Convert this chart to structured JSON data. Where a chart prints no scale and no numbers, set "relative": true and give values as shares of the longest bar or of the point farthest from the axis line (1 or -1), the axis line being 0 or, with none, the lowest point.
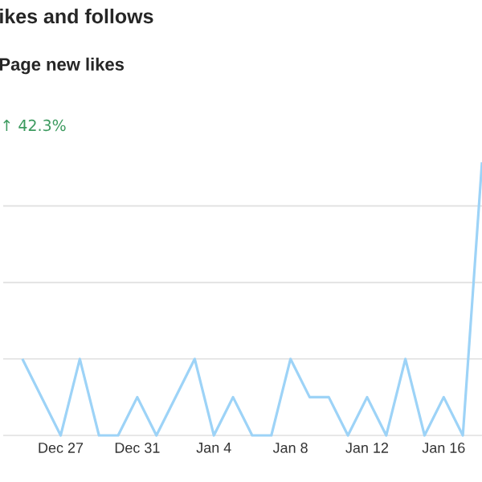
{
  "chart_data": {
    "type": "line",
    "relative": true,
    "title": "ikes and follows",
    "subtitle": "Page new likes",
    "annotations": [
      "↑ 42.3%"
    ],
    "categories": [
      null,
      null,
      "Dec 27",
      null,
      null,
      null,
      "Dec 31",
      null,
      null,
      null,
      "Jan 4",
      null,
      null,
      null,
      "Jan 8",
      null,
      null,
      null,
      "Jan 12",
      null,
      null,
      null,
      "Jan 16",
      null,
      null
    ],
    "values": [
      0.28,
      0.14,
      0,
      0.28,
      0,
      0,
      0.14,
      0,
      0.14,
      0.28,
      0,
      0.14,
      0,
      0,
      0.28,
      0.14,
      0.14,
      0,
      0.14,
      0,
      0.28,
      0,
      0.14,
      0,
      1
    ],
    "color": "#9dd3f7",
    "grid": "y"
  }
}
